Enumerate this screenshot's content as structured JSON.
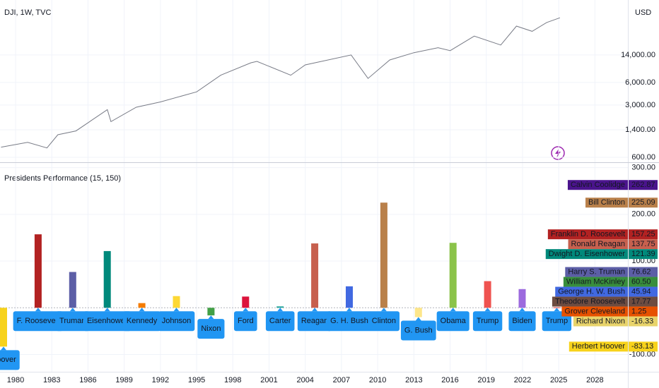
{
  "header": {
    "symbol": "DJI, 1W, TVC",
    "currency": "USD"
  },
  "chart_data": [
    {
      "type": "line",
      "log_scale": true,
      "grid": true,
      "color": "#787b86",
      "ylim": [
        515,
        76000
      ],
      "yticks": [
        {
          "value": 14000,
          "label": "14,000.00"
        },
        {
          "value": 6000,
          "label": "6,000.00"
        },
        {
          "value": 3000,
          "label": "3,000.00"
        },
        {
          "value": 1400,
          "label": "1,400.00"
        },
        {
          "value": 600,
          "label": "600.00"
        }
      ],
      "x": [
        1978.8,
        1981,
        1982.6,
        1983.5,
        1985,
        1987.6,
        1987.9,
        1990,
        1992,
        1995,
        1997,
        1999.5,
        2000,
        2002.8,
        2004,
        2007.8,
        2009.2,
        2011,
        2013,
        2015,
        2016,
        2018,
        2020.2,
        2021.5,
        2022.8,
        2024,
        2025.1
      ],
      "values": [
        820,
        950,
        800,
        1200,
        1350,
        2600,
        1800,
        2800,
        3300,
        4500,
        7500,
        11000,
        11500,
        7500,
        10300,
        14000,
        6800,
        12000,
        15000,
        17500,
        16000,
        25000,
        19000,
        34000,
        29000,
        38000,
        44000
      ]
    },
    {
      "type": "bar",
      "title": "Presidents Performance (15, 150)",
      "grid": true,
      "xlim": [
        1978.71,
        2030.73
      ],
      "xticks": [
        1980,
        1983,
        1986,
        1989,
        1992,
        1995,
        1998,
        2001,
        2004,
        2007,
        2010,
        2013,
        2016,
        2019,
        2022,
        2025,
        2028
      ],
      "ylim": [
        -137,
        310
      ],
      "yticks": [
        {
          "value": 300,
          "label": "300.00"
        },
        {
          "value": 200,
          "label": "200.00"
        },
        {
          "value": 100,
          "label": "100.00"
        },
        {
          "value": -100,
          "label": "-100.00"
        }
      ],
      "categories": [
        "Hoover",
        "F. Roosevelt",
        "Truman",
        "Eisenhower",
        "Kennedy",
        "Johnson",
        "Nixon",
        "Ford",
        "Carter",
        "Reagan",
        "G. H. Bush",
        "Clinton",
        "G. Bush",
        "Obama",
        "Trump",
        "Biden",
        "Trump"
      ],
      "values": [
        -83.13,
        157.25,
        76.62,
        121.39,
        10,
        25,
        -16.33,
        24,
        3,
        137.75,
        45.94,
        225.09,
        -20,
        139,
        57,
        40,
        1
      ],
      "colors": [
        "#f7d21b",
        "#b22222",
        "#5c5ea6",
        "#00897b",
        "#f57c00",
        "#fdd835",
        "#43a047",
        "#dc143c",
        "#26a69a",
        "#c7604e",
        "#4169e1",
        "#b9804a",
        "#fde68a",
        "#8bc34a",
        "#ef5350",
        "#9c6ade",
        "#e53935"
      ],
      "label_color": "#2196f3",
      "side_labels": [
        {
          "name": "Calvin Coolidge",
          "value": 262.87,
          "label": "262.87",
          "color": "#4a148c"
        },
        {
          "name": "Bill Clinton",
          "value": 225.09,
          "label": "225.09",
          "color": "#b9804a"
        },
        {
          "name": "Franklin D. Roosevelt",
          "value": 157.25,
          "label": "157.25",
          "color": "#b22222"
        },
        {
          "name": "Ronald Reagan",
          "value": 137.75,
          "label": "137.75",
          "color": "#c7604e"
        },
        {
          "name": "Dwight D. Eisenhower",
          "value": 121.39,
          "label": "121.39",
          "color": "#00897b"
        },
        {
          "name": "Harry S. Truman",
          "value": 76.62,
          "label": "76.62",
          "color": "#5c5ea6"
        },
        {
          "name": "William McKinley",
          "value": 60.5,
          "label": "60.50",
          "color": "#388e3c"
        },
        {
          "name": "George H. W. Bush",
          "value": 45.94,
          "label": "45.94",
          "color": "#4169e1"
        },
        {
          "name": "Theodore Roosevelt",
          "value": 17.77,
          "label": "17.77",
          "color": "#6d4c41"
        },
        {
          "name": "Grover Cleveland",
          "value": 1.25,
          "label": "1.25",
          "color": "#e65100"
        },
        {
          "name": "Richard Nixon",
          "value": -16.33,
          "label": "-16.33",
          "color": "#e8d36a"
        },
        {
          "name": "Herbert Hoover",
          "value": -83.13,
          "label": "-83.13",
          "color": "#f7d21b"
        }
      ]
    }
  ]
}
